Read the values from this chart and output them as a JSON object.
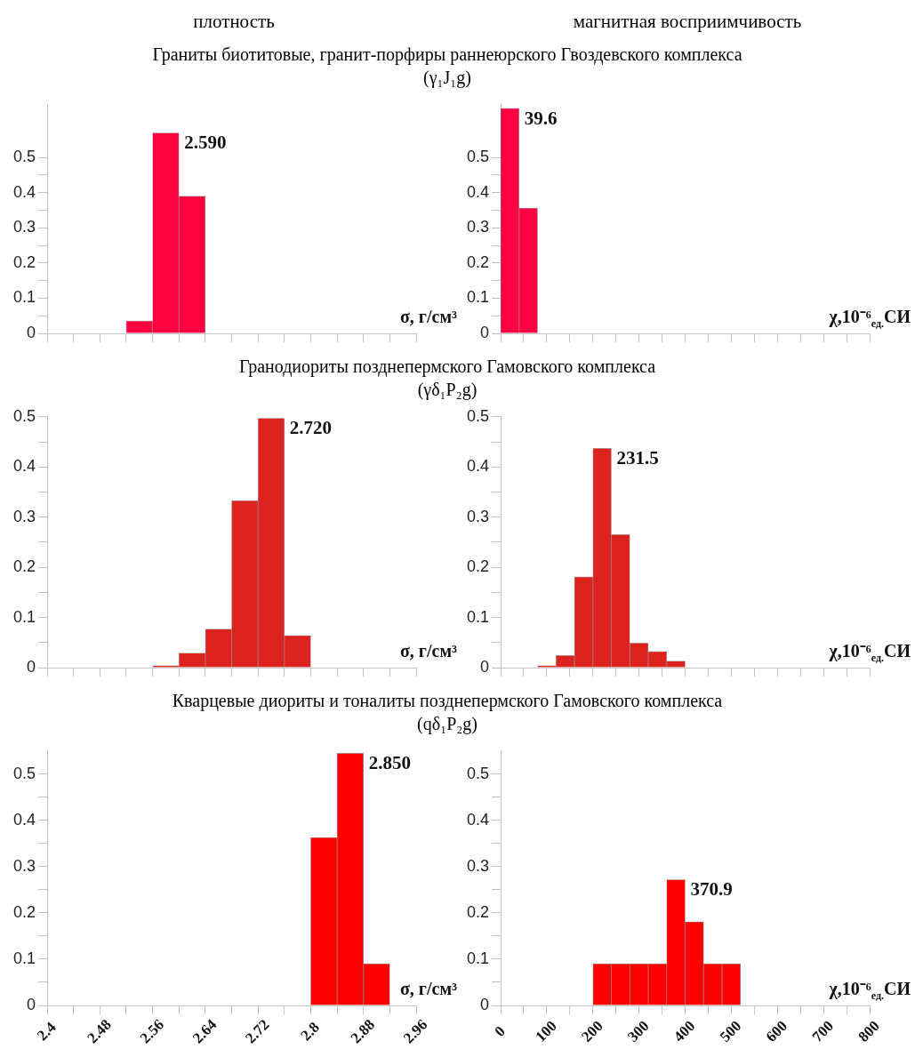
{
  "chart_data": [
    {
      "type": "histogram",
      "title": "Граниты биотитовые, гранит-порфиры раннеюрского Гвоздевского комплекса",
      "subtitle": "(γ₁J₁g)",
      "xlabel": "σ, г/см³",
      "color": "#ff0040",
      "bins": [
        2.52,
        2.56,
        2.6,
        2.64
      ],
      "values": [
        0.035,
        0.57,
        0.39
      ],
      "xlim": [
        2.4,
        2.96
      ],
      "xticks": [
        2.4,
        {
          "value": 2.44,
          "label": null
        },
        2.48,
        {
          "value": 2.52,
          "label": null
        },
        2.56,
        {
          "value": 2.6,
          "label": null
        },
        2.64,
        {
          "value": 2.68,
          "label": null
        },
        2.72,
        {
          "value": 2.76,
          "label": null
        },
        2.8,
        {
          "value": 2.84,
          "label": null
        },
        2.88,
        {
          "value": 2.92,
          "label": null
        },
        2.96
      ],
      "ylim": [
        0,
        0.65
      ],
      "yticks": [
        0,
        {
          "value": 0.05,
          "label": null
        },
        0.1,
        {
          "value": 0.15,
          "label": null
        },
        0.2,
        {
          "value": 0.25,
          "label": null
        },
        0.3,
        {
          "value": 0.35,
          "label": null
        },
        0.4,
        {
          "value": 0.45,
          "label": null
        },
        0.5
      ],
      "tick_labels": "y",
      "annotations": [
        "плотность",
        "2.590"
      ]
    },
    {
      "type": "histogram",
      "xlabel": "χ,10⁻⁶$_{ед.}$СИ",
      "color": "#ff0040",
      "bins": [
        0,
        40,
        80
      ],
      "values": [
        0.64,
        0.356
      ],
      "xlim": [
        0,
        800
      ],
      "xticks": [
        0,
        {
          "value": 50,
          "label": null
        },
        100,
        {
          "value": 150,
          "label": null
        },
        200,
        {
          "value": 250,
          "label": null
        },
        300,
        {
          "value": 350,
          "label": null
        },
        400,
        {
          "value": 450,
          "label": null
        },
        500,
        {
          "value": 550,
          "label": null
        },
        600,
        {
          "value": 650,
          "label": null
        },
        700,
        {
          "value": 750,
          "label": null
        },
        800
      ],
      "ylim": [
        0,
        0.65
      ],
      "yticks": [
        0,
        {
          "value": 0.05,
          "label": null
        },
        0.1,
        {
          "value": 0.15,
          "label": null
        },
        0.2,
        {
          "value": 0.25,
          "label": null
        },
        0.3,
        {
          "value": 0.35,
          "label": null
        },
        0.4,
        {
          "value": 0.45,
          "label": null
        },
        0.5
      ],
      "tick_labels": "y",
      "annotations": [
        "магнитная восприимчивость",
        "39.6"
      ]
    },
    {
      "type": "histogram",
      "title": "Гранодиориты позднепермского Гамовского комплекса",
      "subtitle": "(γδ₁P₂g)",
      "xlabel": "σ, г/см³",
      "color": "#dc231f",
      "bins": [
        2.56,
        2.6,
        2.64,
        2.68,
        2.72,
        2.76,
        2.8
      ],
      "values": [
        0.004,
        0.029,
        0.077,
        0.333,
        0.497,
        0.064
      ],
      "xlim": [
        2.4,
        2.96
      ],
      "xticks": [
        2.4,
        {
          "value": 2.44,
          "label": null
        },
        2.48,
        {
          "value": 2.52,
          "label": null
        },
        2.56,
        {
          "value": 2.6,
          "label": null
        },
        2.64,
        {
          "value": 2.68,
          "label": null
        },
        2.72,
        {
          "value": 2.76,
          "label": null
        },
        2.8,
        {
          "value": 2.84,
          "label": null
        },
        2.88,
        {
          "value": 2.92,
          "label": null
        },
        2.96
      ],
      "ylim": [
        0,
        0.5
      ],
      "yticks": [
        0,
        {
          "value": 0.05,
          "label": null
        },
        0.1,
        {
          "value": 0.15,
          "label": null
        },
        0.2,
        {
          "value": 0.25,
          "label": null
        },
        0.3,
        {
          "value": 0.35,
          "label": null
        },
        0.4,
        {
          "value": 0.45,
          "label": null
        },
        0.5
      ],
      "tick_labels": "y",
      "annotations": [
        "2.720"
      ]
    },
    {
      "type": "histogram",
      "xlabel": "χ,10⁻⁶$_{ед.}$СИ",
      "color": "#dc231f",
      "bins": [
        80,
        120,
        160,
        200,
        240,
        280,
        320,
        360,
        400
      ],
      "values": [
        0.004,
        0.024,
        0.181,
        0.437,
        0.265,
        0.049,
        0.032,
        0.013
      ],
      "xlim": [
        0,
        800
      ],
      "xticks": [
        0,
        {
          "value": 50,
          "label": null
        },
        100,
        {
          "value": 150,
          "label": null
        },
        200,
        {
          "value": 250,
          "label": null
        },
        300,
        {
          "value": 350,
          "label": null
        },
        400,
        {
          "value": 450,
          "label": null
        },
        500,
        {
          "value": 550,
          "label": null
        },
        600,
        {
          "value": 650,
          "label": null
        },
        700,
        {
          "value": 750,
          "label": null
        },
        800
      ],
      "ylim": [
        0,
        0.5
      ],
      "yticks": [
        0,
        {
          "value": 0.05,
          "label": null
        },
        0.1,
        {
          "value": 0.15,
          "label": null
        },
        0.2,
        {
          "value": 0.25,
          "label": null
        },
        0.3,
        {
          "value": 0.35,
          "label": null
        },
        0.4,
        {
          "value": 0.45,
          "label": null
        },
        0.5
      ],
      "tick_labels": "y",
      "annotations": [
        "231.5"
      ]
    },
    {
      "type": "histogram",
      "title": "Кварцевые диориты и тоналиты позднепермского Гамовского комплекса",
      "subtitle": "(qδ₁P₂g)",
      "xlabel": "σ, г/см³",
      "color": "#ff0000",
      "bins": [
        2.8,
        2.84,
        2.88,
        2.92
      ],
      "values": [
        0.363,
        0.545,
        0.09
      ],
      "xlim": [
        2.4,
        2.96
      ],
      "xticks": [
        2.4,
        {
          "value": 2.44,
          "label": null
        },
        2.48,
        {
          "value": 2.52,
          "label": null
        },
        2.56,
        {
          "value": 2.6,
          "label": null
        },
        2.64,
        {
          "value": 2.68,
          "label": null
        },
        2.72,
        {
          "value": 2.76,
          "label": null
        },
        2.8,
        {
          "value": 2.84,
          "label": null
        },
        2.88,
        {
          "value": 2.92,
          "label": null
        },
        2.96
      ],
      "ylim": [
        0,
        0.55
      ],
      "yticks": [
        0,
        {
          "value": 0.05,
          "label": null
        },
        0.1,
        {
          "value": 0.15,
          "label": null
        },
        0.2,
        {
          "value": 0.25,
          "label": null
        },
        0.3,
        {
          "value": 0.35,
          "label": null
        },
        0.4,
        {
          "value": 0.45,
          "label": null
        },
        0.5
      ],
      "annotations": [
        "2.850"
      ]
    },
    {
      "type": "histogram",
      "xlabel": "χ,10⁻⁶$_{ед.}$СИ",
      "color": "#ff0000",
      "bins": [
        200,
        240,
        280,
        320,
        360,
        400,
        440,
        480,
        520
      ],
      "values": [
        0.09,
        0.09,
        0.09,
        0.09,
        0.272,
        0.181,
        0.09,
        0.09
      ],
      "xlim": [
        0,
        800
      ],
      "xticks": [
        0,
        {
          "value": 50,
          "label": null
        },
        100,
        {
          "value": 150,
          "label": null
        },
        200,
        {
          "value": 250,
          "label": null
        },
        300,
        {
          "value": 350,
          "label": null
        },
        400,
        {
          "value": 450,
          "label": null
        },
        500,
        {
          "value": 550,
          "label": null
        },
        600,
        {
          "value": 650,
          "label": null
        },
        700,
        {
          "value": 750,
          "label": null
        },
        800
      ],
      "ylim": [
        0,
        0.55
      ],
      "yticks": [
        0,
        {
          "value": 0.05,
          "label": null
        },
        0.1,
        {
          "value": 0.15,
          "label": null
        },
        0.2,
        {
          "value": 0.25,
          "label": null
        },
        0.3,
        {
          "value": 0.35,
          "label": null
        },
        0.4,
        {
          "value": 0.45,
          "label": null
        },
        0.5
      ],
      "annotations": [
        "370.9"
      ]
    }
  ]
}
